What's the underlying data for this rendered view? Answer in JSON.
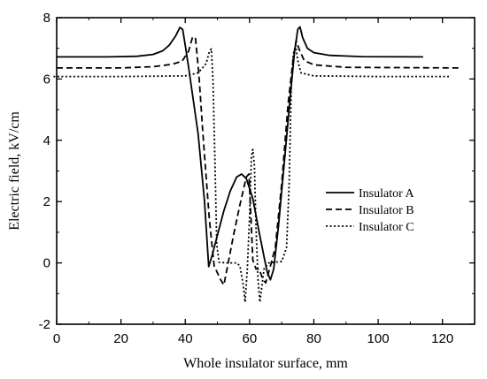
{
  "chart_data": {
    "type": "line",
    "title": "",
    "xlabel": "Whole insulator surface, mm",
    "ylabel": "Electric field, kV/cm",
    "xlim": [
      0,
      130
    ],
    "ylim": [
      -2,
      8
    ],
    "xticks": [
      "0",
      "20",
      "40",
      "60",
      "80",
      "100",
      "120"
    ],
    "yticks": [
      "-2",
      "0",
      "2",
      "4",
      "6",
      "8"
    ],
    "xtick_values": [
      0,
      20,
      40,
      60,
      80,
      100,
      120
    ],
    "ytick_values": [
      -2,
      0,
      2,
      4,
      6,
      8
    ],
    "grid": false,
    "legend_position": "right-center",
    "series": [
      {
        "name": "Insulator A",
        "style": "solid",
        "points": [
          [
            0,
            6.72
          ],
          [
            15,
            6.72
          ],
          [
            25,
            6.74
          ],
          [
            30,
            6.8
          ],
          [
            33,
            6.92
          ],
          [
            35,
            7.1
          ],
          [
            37,
            7.4
          ],
          [
            38.3,
            7.68
          ],
          [
            39.2,
            7.62
          ],
          [
            40,
            7.1
          ],
          [
            41,
            6.4
          ],
          [
            44,
            4.2
          ],
          [
            46,
            2.0
          ],
          [
            47.3,
            -0.12
          ],
          [
            48.5,
            0.3
          ],
          [
            50,
            0.9
          ],
          [
            52,
            1.7
          ],
          [
            54,
            2.35
          ],
          [
            56,
            2.8
          ],
          [
            57.5,
            2.9
          ],
          [
            59,
            2.75
          ],
          [
            61,
            2.1
          ],
          [
            63,
            1.0
          ],
          [
            64.5,
            0.2
          ],
          [
            65.5,
            -0.3
          ],
          [
            66.5,
            -0.55
          ],
          [
            67.5,
            -0.2
          ],
          [
            69,
            1.2
          ],
          [
            71,
            3.5
          ],
          [
            73,
            5.8
          ],
          [
            74,
            6.9
          ],
          [
            75,
            7.62
          ],
          [
            75.7,
            7.7
          ],
          [
            76.5,
            7.35
          ],
          [
            78,
            7.0
          ],
          [
            80,
            6.86
          ],
          [
            85,
            6.77
          ],
          [
            95,
            6.73
          ],
          [
            114,
            6.72
          ]
        ]
      },
      {
        "name": "Insulator B",
        "style": "dashed",
        "points": [
          [
            0,
            6.36
          ],
          [
            20,
            6.36
          ],
          [
            30,
            6.4
          ],
          [
            36,
            6.48
          ],
          [
            39,
            6.58
          ],
          [
            41,
            6.9
          ],
          [
            42.3,
            7.38
          ],
          [
            43.2,
            7.32
          ],
          [
            44.2,
            6.2
          ],
          [
            45.5,
            4.2
          ],
          [
            47.5,
            1.4
          ],
          [
            49,
            -0.1
          ],
          [
            51,
            -0.55
          ],
          [
            52,
            -0.72
          ],
          [
            53,
            -0.2
          ],
          [
            55,
            0.9
          ],
          [
            57,
            1.9
          ],
          [
            59,
            2.8
          ],
          [
            59.8,
            2.9
          ],
          [
            60.5,
            1.3
          ],
          [
            61,
            0.1
          ],
          [
            62,
            -0.2
          ],
          [
            63,
            -0.2
          ],
          [
            64,
            -0.5
          ],
          [
            65,
            -0.65
          ],
          [
            66.5,
            -0.1
          ],
          [
            68,
            0.5
          ],
          [
            70,
            2.6
          ],
          [
            72,
            5.2
          ],
          [
            73.5,
            6.6
          ],
          [
            74.5,
            7.26
          ],
          [
            75.5,
            6.95
          ],
          [
            77,
            6.6
          ],
          [
            80,
            6.46
          ],
          [
            90,
            6.38
          ],
          [
            125,
            6.36
          ]
        ]
      },
      {
        "name": "Insulator C",
        "style": "dotted",
        "points": [
          [
            -1,
            6.08
          ],
          [
            20,
            6.08
          ],
          [
            40,
            6.1
          ],
          [
            44,
            6.2
          ],
          [
            46.5,
            6.5
          ],
          [
            47.5,
            6.9
          ],
          [
            48.1,
            6.98
          ],
          [
            48.6,
            6.0
          ],
          [
            49.2,
            3.5
          ],
          [
            49.8,
            0.6
          ],
          [
            50.5,
            0.02
          ],
          [
            53,
            0
          ],
          [
            56,
            0
          ],
          [
            57,
            -0.1
          ],
          [
            58,
            -0.7
          ],
          [
            58.6,
            -1.28
          ],
          [
            59.3,
            -0.2
          ],
          [
            60,
            1.5
          ],
          [
            60.6,
            3.5
          ],
          [
            61,
            3.7
          ],
          [
            61.5,
            3.2
          ],
          [
            62,
            1.2
          ],
          [
            62.6,
            -0.5
          ],
          [
            63.2,
            -1.28
          ],
          [
            63.8,
            -0.8
          ],
          [
            64.5,
            -0.2
          ],
          [
            66,
            0
          ],
          [
            70,
            0.05
          ],
          [
            71.5,
            0.5
          ],
          [
            72.3,
            2.5
          ],
          [
            73,
            5.8
          ],
          [
            73.6,
            6.8
          ],
          [
            74.3,
            7.1
          ],
          [
            75,
            6.6
          ],
          [
            76,
            6.2
          ],
          [
            80,
            6.1
          ],
          [
            100,
            6.08
          ],
          [
            122,
            6.08
          ]
        ]
      }
    ]
  }
}
